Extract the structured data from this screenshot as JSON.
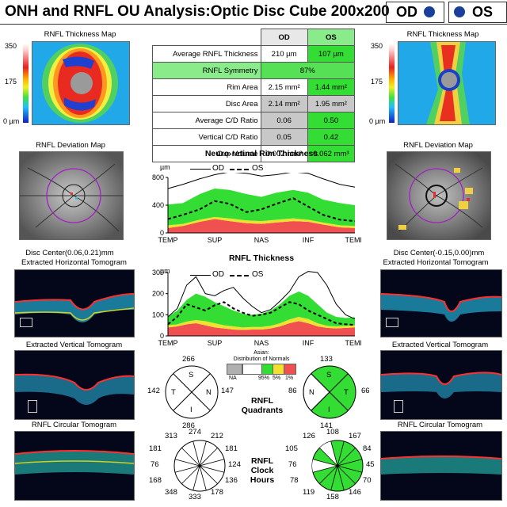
{
  "header": {
    "title": "ONH and RNFL OU Analysis:Optic Disc Cube 200x200",
    "od_label": "OD",
    "os_label": "OS"
  },
  "colors": {
    "eye_dot": "#1a3f9a",
    "normal_green": "#33dd33",
    "borderline_yellow": "#f0e030",
    "outside_red": "#f05050",
    "na_gray": "#b0b0b0",
    "row_header_green": "#8aeb8a",
    "symmetry_green": "#55e055"
  },
  "thickness_maps": {
    "caption": "RNFL Thickness Map",
    "scale_max": "350",
    "scale_mid": "175",
    "scale_min": "0 µm"
  },
  "parameter_table": {
    "col_od": "OD",
    "col_os": "OS",
    "rows": [
      {
        "label": "Average RNFL Thickness",
        "od": "210 µm",
        "os": "107 µm",
        "od_color": "white",
        "os_color": "green"
      },
      {
        "label": "RNFL Symmetry",
        "merged": "87%",
        "color": "green"
      },
      {
        "label": "Rim Area",
        "od": "2.15 mm²",
        "os": "1.44 mm²",
        "od_color": "white",
        "os_color": "green"
      },
      {
        "label": "Disc Area",
        "od": "2.14 mm²",
        "os": "1.95 mm²",
        "od_color": "gray",
        "os_color": "gray"
      },
      {
        "label": "Average C/D Ratio",
        "od": "0.06",
        "os": "0.50",
        "od_color": "gray",
        "os_color": "green"
      },
      {
        "label": "Vertical C/D Ratio",
        "od": "0.05",
        "os": "0.42",
        "od_color": "gray",
        "os_color": "green"
      },
      {
        "label": "Cup Volume",
        "od": "0.002 mm³",
        "os": "0.062 mm³",
        "od_color": "white",
        "os_color": "green"
      }
    ]
  },
  "deviation_maps": {
    "caption": "RNFL Deviation Map",
    "od_disc_center": "Disc Center(0.06,0.21)mm",
    "os_disc_center": "Disc Center(-0.15,0.00)mm"
  },
  "tomograms": {
    "horizontal": "Extracted Horizontal Tomogram",
    "vertical": "Extracted Vertical Tomogram",
    "circular": "RNFL Circular Tomogram"
  },
  "chart_data": [
    {
      "type": "area",
      "title": "Neuro-retinal Rim Thickness",
      "ylabel": "µm",
      "ylim": [
        0,
        800
      ],
      "yticks": [
        "0",
        "400",
        "800"
      ],
      "xticks": [
        "TEMP",
        "SUP",
        "NAS",
        "INF",
        "TEMP"
      ],
      "legend": [
        "OD",
        "OS"
      ],
      "x": [
        0,
        8,
        17,
        25,
        33,
        42,
        50,
        58,
        67,
        75,
        83,
        92,
        100
      ],
      "norms": {
        "p1": [
          70,
          100,
          160,
          200,
          170,
          140,
          130,
          150,
          170,
          160,
          120,
          80,
          70
        ],
        "p5": [
          110,
          130,
          190,
          230,
          210,
          180,
          170,
          190,
          210,
          190,
          150,
          110,
          100
        ],
        "p95": [
          410,
          430,
          560,
          640,
          620,
          560,
          520,
          580,
          620,
          580,
          480,
          430,
          400
        ]
      },
      "series": [
        {
          "name": "OD",
          "values": [
            640,
            700,
            780,
            840,
            880,
            860,
            820,
            840,
            880,
            860,
            780,
            700,
            660
          ]
        },
        {
          "name": "OS",
          "values": [
            200,
            260,
            340,
            460,
            420,
            300,
            340,
            420,
            500,
            380,
            260,
            190,
            170
          ]
        }
      ]
    },
    {
      "type": "area",
      "title": "RNFL Thickness",
      "ylabel": "µm",
      "ylim": [
        0,
        300
      ],
      "yticks": [
        "0",
        "100",
        "200",
        "300"
      ],
      "xticks": [
        "TEMP",
        "SUP",
        "NAS",
        "INF",
        "TEMP"
      ],
      "legend": [
        "OD",
        "OS"
      ],
      "x": [
        0,
        5,
        10,
        15,
        20,
        25,
        30,
        35,
        40,
        45,
        50,
        55,
        60,
        65,
        70,
        75,
        80,
        85,
        90,
        95,
        100
      ],
      "norms": {
        "p1": [
          40,
          45,
          55,
          60,
          50,
          40,
          35,
          30,
          28,
          30,
          30,
          35,
          45,
          60,
          70,
          60,
          45,
          38,
          35,
          38,
          40
        ],
        "p5": [
          50,
          55,
          68,
          75,
          70,
          60,
          50,
          45,
          40,
          42,
          42,
          48,
          60,
          78,
          90,
          80,
          60,
          48,
          45,
          48,
          50
        ],
        "p95": [
          90,
          120,
          170,
          200,
          185,
          160,
          140,
          120,
          105,
          100,
          105,
          120,
          150,
          190,
          210,
          190,
          150,
          110,
          90,
          85,
          88
        ]
      },
      "series": [
        {
          "name": "OD",
          "values": [
            90,
            130,
            240,
            280,
            200,
            190,
            215,
            230,
            180,
            140,
            110,
            125,
            165,
            210,
            280,
            305,
            300,
            240,
            150,
            100,
            80
          ]
        },
        {
          "name": "OS",
          "values": [
            55,
            90,
            150,
            135,
            120,
            145,
            160,
            130,
            110,
            95,
            100,
            110,
            135,
            160,
            150,
            120,
            100,
            80,
            60,
            55,
            52
          ]
        }
      ]
    }
  ],
  "norms_legend": {
    "title": "Asian:",
    "subtitle": "Distribution of Normals",
    "labels": [
      "NA",
      "95%",
      "5%",
      "1%"
    ]
  },
  "quadrants": {
    "title_line1": "RNFL",
    "title_line2": "Quadrants",
    "sector_letters": {
      "s": "S",
      "t": "T",
      "n": "N",
      "i": "I"
    },
    "od": {
      "s": "266",
      "t": "142",
      "n": "147",
      "i": "286"
    },
    "os": {
      "s": "133",
      "n": "86",
      "t": "66",
      "i": "141"
    }
  },
  "clock_hours": {
    "title_line1": "RNFL",
    "title_line2": "Clock",
    "title_line3": "Hours",
    "od": [
      "274",
      "212",
      "181",
      "124",
      "136",
      "178",
      "333",
      "348",
      "168",
      "76",
      "181",
      "313"
    ],
    "os": [
      "108",
      "167",
      "84",
      "45",
      "70",
      "146",
      "158",
      "119",
      "78",
      "76",
      "105",
      "126"
    ]
  }
}
